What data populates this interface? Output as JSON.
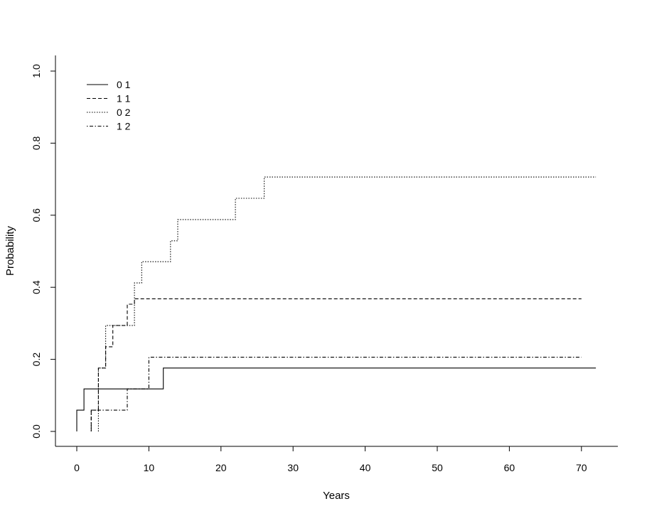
{
  "chart_data": {
    "type": "line",
    "step": true,
    "title": "",
    "xlabel": "Years",
    "ylabel": "Probability",
    "xlim": [
      0,
      72
    ],
    "ylim": [
      0,
      1
    ],
    "xticks": [
      "0",
      "10",
      "20",
      "30",
      "40",
      "50",
      "60",
      "70"
    ],
    "yticks": [
      "0.0",
      "0.2",
      "0.4",
      "0.6",
      "0.8",
      "1.0"
    ],
    "legend_position": "top-left",
    "series": [
      {
        "name": "0 1",
        "line_style": "solid",
        "points": [
          [
            0,
            0
          ],
          [
            0,
            0.059
          ],
          [
            1,
            0.059
          ],
          [
            1,
            0.118
          ],
          [
            12,
            0.118
          ],
          [
            12,
            0.176
          ],
          [
            72,
            0.176
          ]
        ]
      },
      {
        "name": "1 1",
        "line_style": "dashed",
        "points": [
          [
            2,
            0
          ],
          [
            2,
            0.059
          ],
          [
            3,
            0.059
          ],
          [
            3,
            0.176
          ],
          [
            4,
            0.176
          ],
          [
            4,
            0.235
          ],
          [
            5,
            0.235
          ],
          [
            5,
            0.294
          ],
          [
            7,
            0.294
          ],
          [
            7,
            0.353
          ],
          [
            8,
            0.353
          ],
          [
            8,
            0.368
          ],
          [
            70,
            0.368
          ]
        ]
      },
      {
        "name": "0 2",
        "line_style": "dotted",
        "points": [
          [
            3,
            0
          ],
          [
            3,
            0.176
          ],
          [
            4,
            0.176
          ],
          [
            4,
            0.294
          ],
          [
            8,
            0.294
          ],
          [
            8,
            0.412
          ],
          [
            9,
            0.412
          ],
          [
            9,
            0.471
          ],
          [
            13,
            0.471
          ],
          [
            13,
            0.529
          ],
          [
            14,
            0.529
          ],
          [
            14,
            0.588
          ],
          [
            22,
            0.588
          ],
          [
            22,
            0.647
          ],
          [
            26,
            0.647
          ],
          [
            26,
            0.706
          ],
          [
            72,
            0.706
          ]
        ]
      },
      {
        "name": "1 2",
        "line_style": "dotdash",
        "points": [
          [
            2,
            0
          ],
          [
            2,
            0.059
          ],
          [
            7,
            0.059
          ],
          [
            7,
            0.118
          ],
          [
            10,
            0.118
          ],
          [
            10,
            0.206
          ],
          [
            70,
            0.206
          ]
        ]
      }
    ]
  }
}
